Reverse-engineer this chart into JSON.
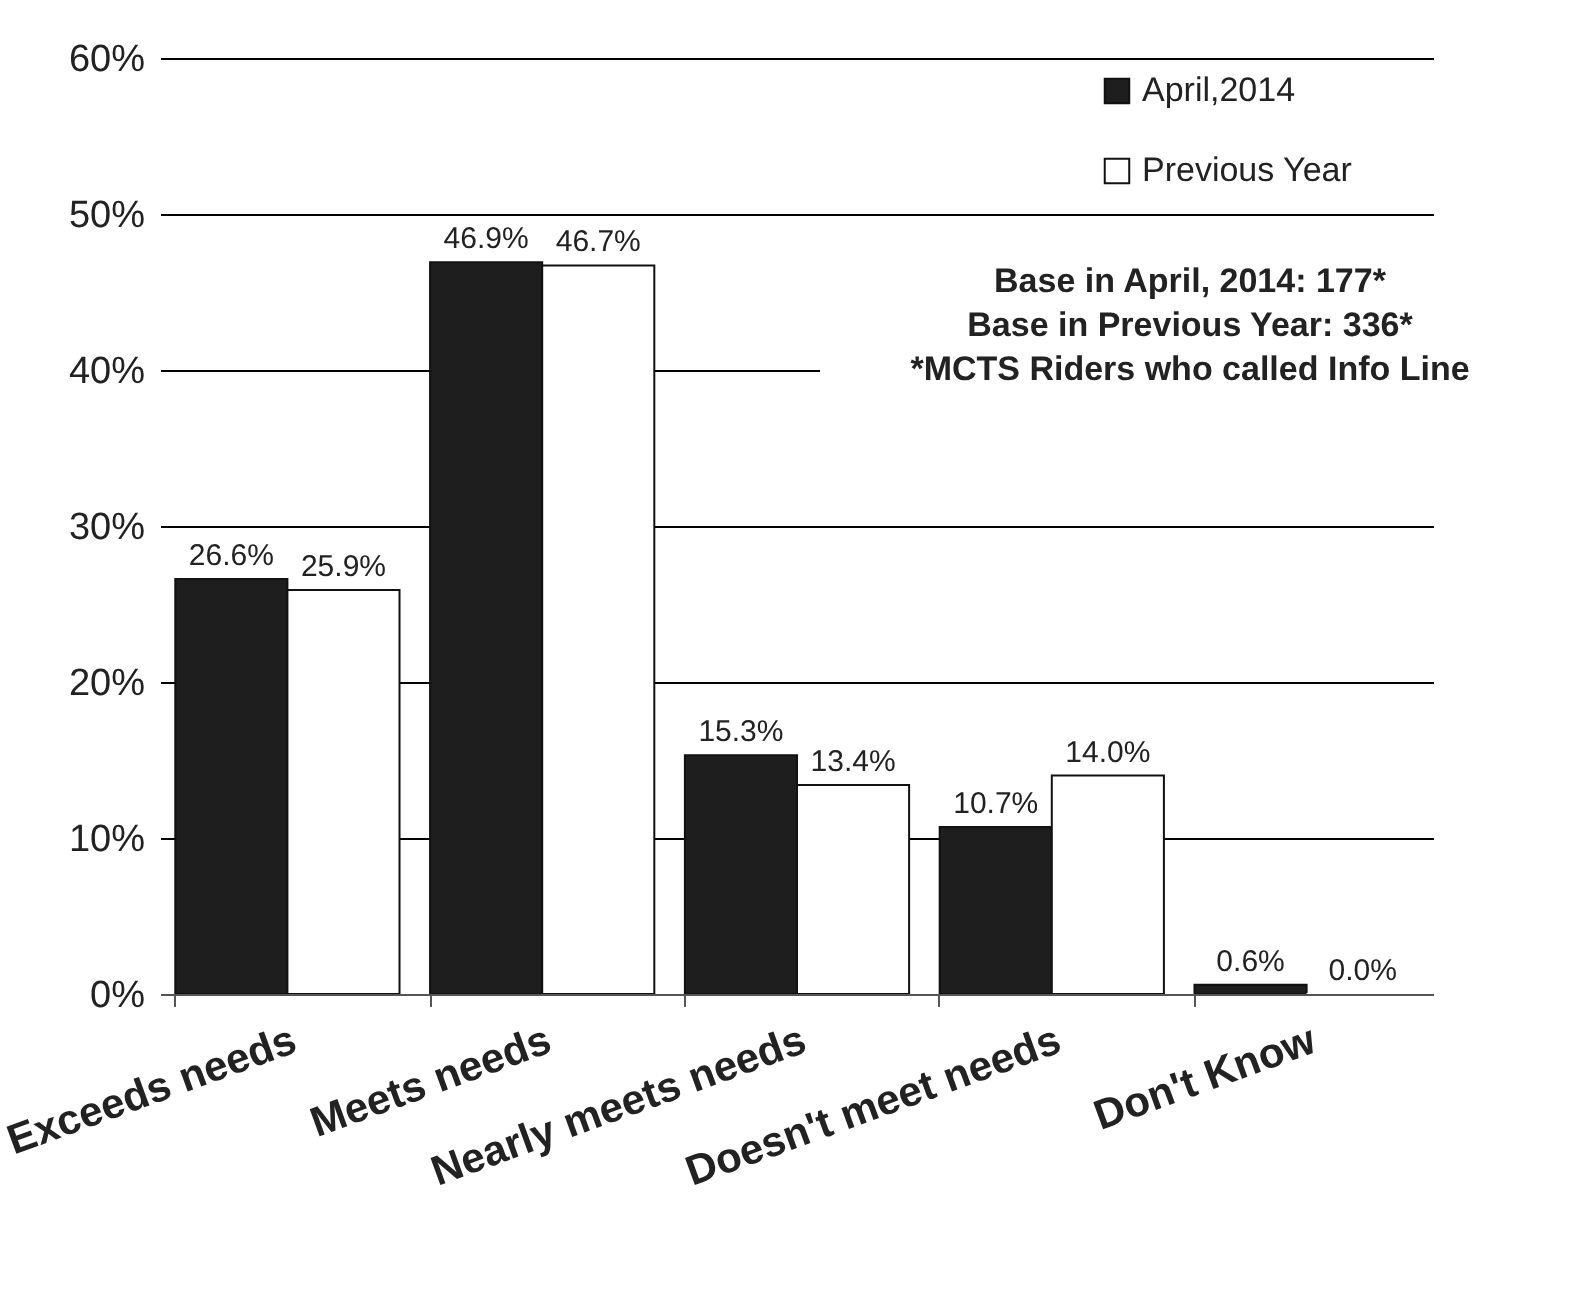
{
  "chart_data": {
    "type": "bar",
    "categories": [
      "Exceeds needs",
      "Meets needs",
      "Nearly meets needs",
      "Doesn't meet needs",
      "Don't Know"
    ],
    "series": [
      {
        "name": "April,2014",
        "color": "#1e1e1e",
        "values": [
          26.6,
          46.9,
          15.3,
          10.7,
          0.6
        ],
        "value_labels": [
          "26.6%",
          "46.9%",
          "15.3%",
          "10.7%",
          "0.6%"
        ]
      },
      {
        "name": "Previous Year",
        "color": "#ffffff",
        "values": [
          25.9,
          46.7,
          13.4,
          14.0,
          0.0
        ],
        "value_labels": [
          "25.9%",
          "46.7%",
          "13.4%",
          "14.0%",
          "0.0%"
        ]
      }
    ],
    "ylim": [
      0,
      60
    ],
    "yticks": [
      {
        "value": 0,
        "label": "0%"
      },
      {
        "value": 10,
        "label": "10%"
      },
      {
        "value": 20,
        "label": "20%"
      },
      {
        "value": 30,
        "label": "30%"
      },
      {
        "value": 40,
        "label": "40%"
      },
      {
        "value": 50,
        "label": "50%"
      },
      {
        "value": 60,
        "label": "60%"
      }
    ],
    "grid": "y",
    "legend": "top right",
    "annotations": [
      "Base in April, 2014: 177*",
      "Base in Previous Year: 336*",
      "*MCTS Riders who called Info Line"
    ]
  }
}
